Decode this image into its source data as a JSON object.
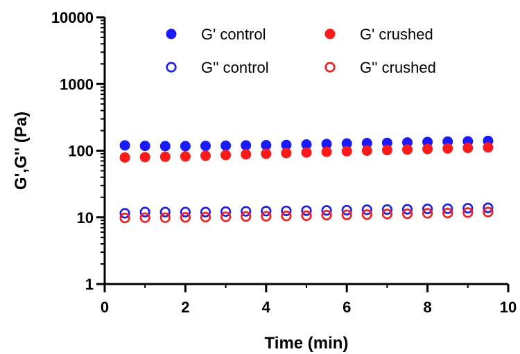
{
  "chart_data": {
    "type": "scatter",
    "title": "",
    "xlabel": "Time (min)",
    "ylabel": "G',G'' (Pa)",
    "xlim": [
      0,
      10
    ],
    "ylim": [
      1,
      10000
    ],
    "yscale": "log",
    "grid": false,
    "legend_position": "top",
    "x_ticks": [
      "0",
      "2",
      "4",
      "6",
      "8",
      "10"
    ],
    "y_ticks": [
      "1",
      "10",
      "100",
      "1000",
      "10000"
    ],
    "x": [
      0.5,
      1.0,
      1.5,
      2.0,
      2.5,
      3.0,
      3.5,
      4.0,
      4.5,
      5.0,
      5.5,
      6.0,
      6.5,
      7.0,
      7.5,
      8.0,
      8.5,
      9.0,
      9.5
    ],
    "series": [
      {
        "name": "G' control",
        "color": "#1a1aff",
        "marker": "filled-circle",
        "values": [
          120,
          118,
          117,
          117,
          118,
          119,
          120,
          121,
          122,
          124,
          126,
          128,
          130,
          131,
          133,
          135,
          137,
          138,
          140
        ]
      },
      {
        "name": "G' crushed",
        "color": "#ff1a1a",
        "marker": "filled-circle",
        "values": [
          79,
          80,
          81,
          82,
          84,
          86,
          88,
          90,
          92,
          94,
          96,
          98,
          100,
          102,
          104,
          106,
          108,
          110,
          112
        ]
      },
      {
        "name": "G'' control",
        "color": "#1a1aff",
        "marker": "open-circle",
        "values": [
          11.5,
          12.0,
          12.0,
          12.0,
          12.0,
          12.2,
          12.3,
          12.4,
          12.5,
          12.6,
          12.7,
          12.8,
          13.0,
          13.1,
          13.2,
          13.4,
          13.5,
          13.7,
          13.9
        ]
      },
      {
        "name": "G'' crushed",
        "color": "#ff1a1a",
        "marker": "open-circle",
        "values": [
          9.8,
          9.9,
          9.9,
          10.0,
          10.1,
          10.2,
          10.3,
          10.4,
          10.5,
          10.6,
          10.8,
          10.9,
          11.0,
          11.2,
          11.3,
          11.5,
          11.6,
          11.8,
          12.0
        ]
      }
    ]
  }
}
